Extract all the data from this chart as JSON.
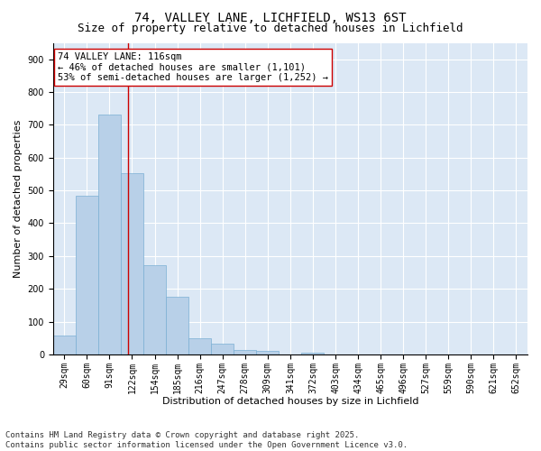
{
  "title1": "74, VALLEY LANE, LICHFIELD, WS13 6ST",
  "title2": "Size of property relative to detached houses in Lichfield",
  "xlabel": "Distribution of detached houses by size in Lichfield",
  "ylabel": "Number of detached properties",
  "categories": [
    "29sqm",
    "60sqm",
    "91sqm",
    "122sqm",
    "154sqm",
    "185sqm",
    "216sqm",
    "247sqm",
    "278sqm",
    "309sqm",
    "341sqm",
    "372sqm",
    "403sqm",
    "434sqm",
    "465sqm",
    "496sqm",
    "527sqm",
    "559sqm",
    "590sqm",
    "621sqm",
    "652sqm"
  ],
  "values": [
    57,
    484,
    730,
    553,
    272,
    175,
    48,
    33,
    13,
    11,
    0,
    5,
    0,
    0,
    0,
    0,
    0,
    0,
    0,
    0,
    0
  ],
  "bar_color": "#b8d0e8",
  "bar_edge_color": "#7aafd4",
  "bg_color": "#dce8f5",
  "grid_color": "#ffffff",
  "vline_color": "#cc0000",
  "annotation_text": "74 VALLEY LANE: 116sqm\n← 46% of detached houses are smaller (1,101)\n53% of semi-detached houses are larger (1,252) →",
  "annotation_box_color": "#ffffff",
  "annotation_box_edge": "#cc0000",
  "ylim": [
    0,
    950
  ],
  "yticks": [
    0,
    100,
    200,
    300,
    400,
    500,
    600,
    700,
    800,
    900
  ],
  "footnote": "Contains HM Land Registry data © Crown copyright and database right 2025.\nContains public sector information licensed under the Open Government Licence v3.0.",
  "title_fontsize": 10,
  "subtitle_fontsize": 9,
  "axis_label_fontsize": 8,
  "tick_fontsize": 7,
  "annotation_fontsize": 7.5,
  "footnote_fontsize": 6.5
}
